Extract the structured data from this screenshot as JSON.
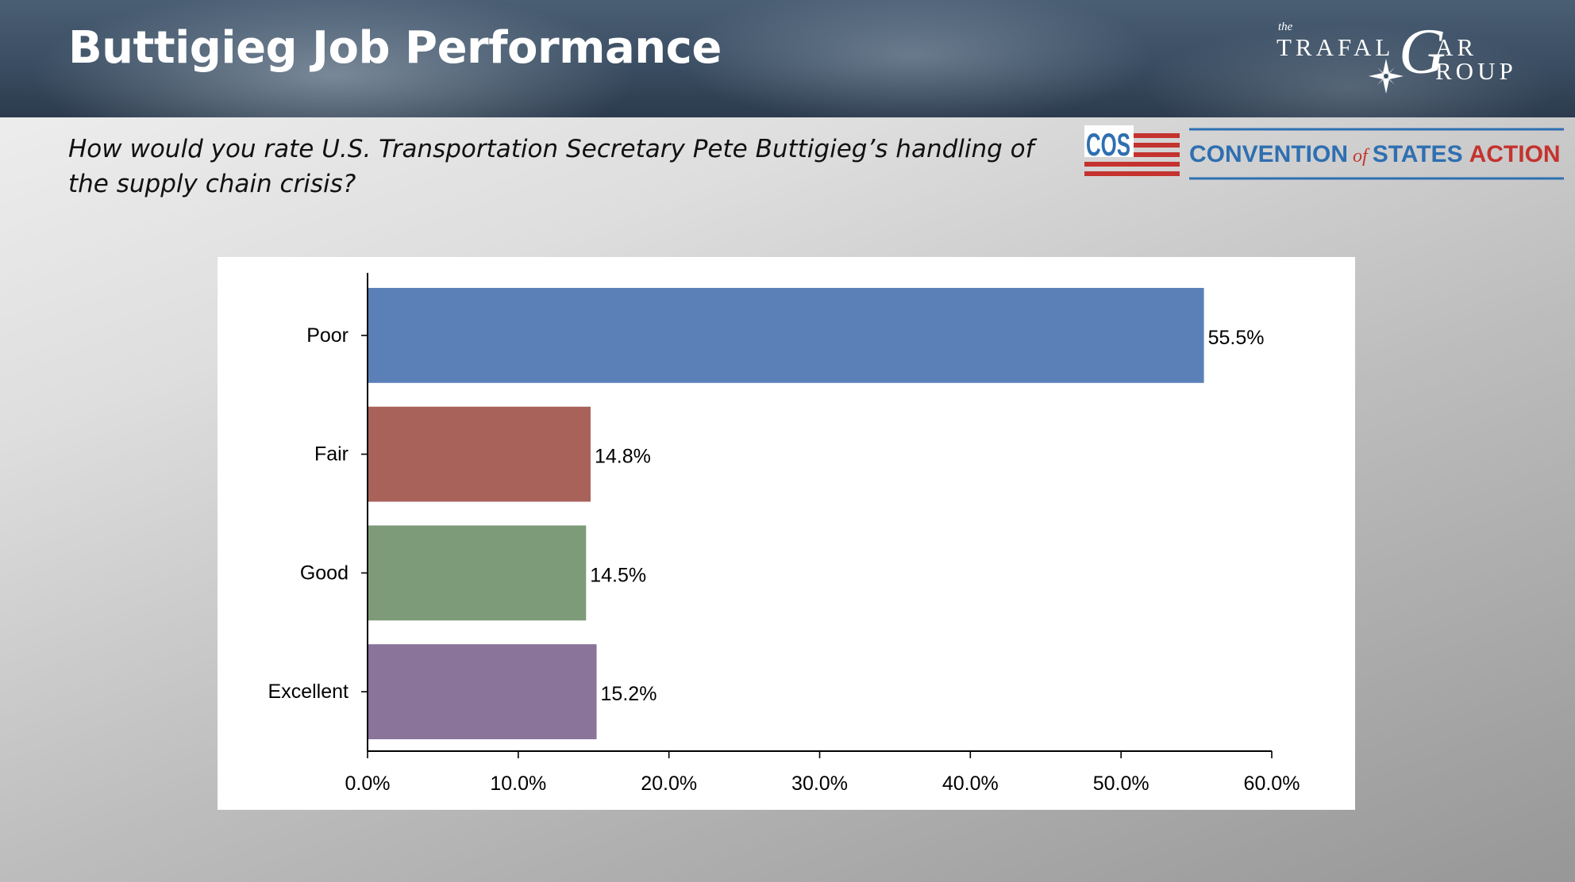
{
  "slide": {
    "title": "Buttigieg Job Performance",
    "question": "How would you rate U.S. Transportation Secretary Pete Buttigieg’s handling of the supply chain crisis?"
  },
  "logos": {
    "trafalgar": {
      "the": "the",
      "word1": "TRAFAL",
      "big_g": "G",
      "word2_top": "AR",
      "word2_bottom": "ROUP"
    },
    "cos": {
      "mark": "COS",
      "text_convention": "CONVENTION",
      "text_of": "of",
      "text_states": "STATES",
      "text_action": "ACTION"
    }
  },
  "chart_data": {
    "type": "bar",
    "orientation": "horizontal",
    "categories": [
      "Poor",
      "Fair",
      "Good",
      "Excellent"
    ],
    "values": [
      55.5,
      14.8,
      14.5,
      15.2
    ],
    "value_labels": [
      "55.5%",
      "14.8%",
      "14.5%",
      "15.2%"
    ],
    "colors": [
      "#5b80b8",
      "#a8625a",
      "#7e9b79",
      "#8a749a"
    ],
    "xlim": [
      0,
      60
    ],
    "xticks": [
      0,
      10,
      20,
      30,
      40,
      50,
      60
    ],
    "xtick_labels": [
      "0.0%",
      "10.0%",
      "20.0%",
      "30.0%",
      "40.0%",
      "50.0%",
      "60.0%"
    ],
    "grid": false,
    "legend": "none"
  },
  "colors": {
    "cos_blue": "#2e6fb1",
    "cos_red": "#c4332f"
  }
}
